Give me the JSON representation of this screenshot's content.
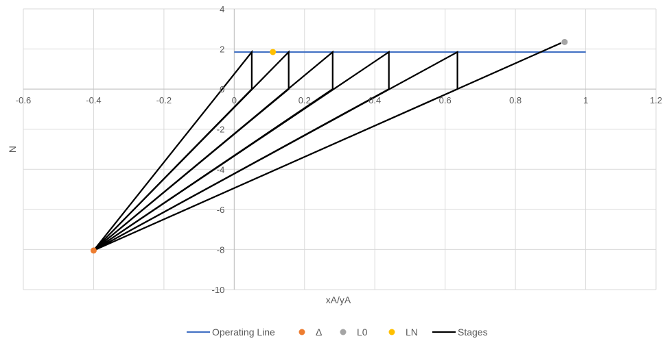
{
  "chart_data": {
    "type": "scatter",
    "title": "",
    "xlabel": "xA/yA",
    "ylabel": "N",
    "xlim": [
      -0.6,
      1.2
    ],
    "ylim": [
      -10,
      4
    ],
    "x_ticks": [
      -0.6,
      -0.4,
      -0.2,
      0,
      0.2,
      0.4,
      0.6,
      0.8,
      1,
      1.2
    ],
    "y_ticks": [
      -10,
      -8,
      -6,
      -4,
      -2,
      0,
      2,
      4
    ],
    "x_tick_labels": [
      "-0.6",
      "-0.4",
      "-0.2",
      "0",
      "0.2",
      "0.4",
      "0.6",
      "0.8",
      "1",
      "1.2"
    ],
    "y_tick_labels": [
      "-10",
      "-8",
      "-6",
      "-4",
      "-2",
      "0",
      "2",
      "4"
    ],
    "grid": true,
    "legend_position": "bottom",
    "series": [
      {
        "name": "Operating Line",
        "kind": "line",
        "color": "#4472c4",
        "points": [
          [
            0,
            1.85
          ],
          [
            1,
            1.85
          ]
        ]
      },
      {
        "name": "Δ",
        "kind": "marker",
        "color": "#ed7d31",
        "points": [
          [
            -0.4,
            -8.05
          ]
        ]
      },
      {
        "name": "L0",
        "kind": "marker",
        "color": "#a5a5a5",
        "points": [
          [
            0.94,
            2.35
          ]
        ]
      },
      {
        "name": "LN",
        "kind": "marker",
        "color": "#ffc000",
        "points": [
          [
            0.11,
            1.85
          ]
        ]
      },
      {
        "name": "Stages",
        "kind": "line",
        "color": "#000000",
        "points": [
          [
            0.93,
            2.3
          ],
          [
            -0.4,
            -8.05
          ],
          [
            0.635,
            0
          ],
          [
            0.635,
            1.85
          ],
          [
            -0.4,
            -8.05
          ],
          [
            0.44,
            0
          ],
          [
            0.44,
            1.85
          ],
          [
            -0.4,
            -8.05
          ],
          [
            0.28,
            0
          ],
          [
            0.28,
            1.85
          ],
          [
            -0.4,
            -8.05
          ],
          [
            0.155,
            0
          ],
          [
            0.155,
            1.85
          ],
          [
            -0.4,
            -8.05
          ],
          [
            0.05,
            0
          ],
          [
            0.05,
            1.85
          ],
          [
            -0.4,
            -8.05
          ]
        ]
      }
    ]
  }
}
